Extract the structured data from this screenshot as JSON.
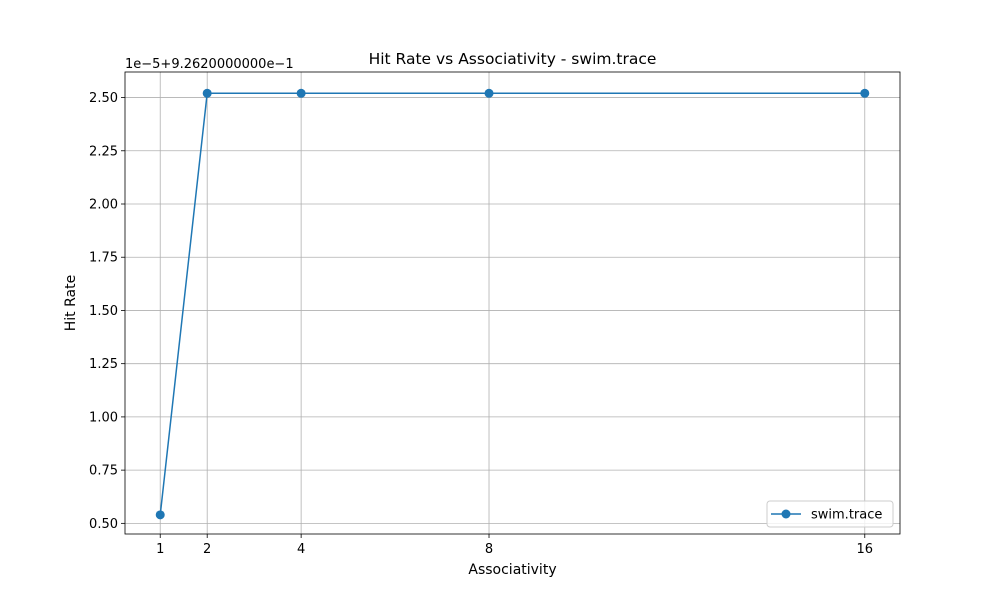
{
  "chart_data": {
    "type": "line",
    "title": "Hit Rate vs Associativity - swim.trace",
    "xlabel": "Associativity",
    "ylabel": "Hit Rate",
    "y_offset_label": "1e−5+9.2620000000e−1",
    "x_ticks": [
      1,
      2,
      4,
      8,
      16
    ],
    "x_tick_labels": [
      "1",
      "2",
      "4",
      "8",
      "16"
    ],
    "y_ticks": [
      0.5,
      0.75,
      1.0,
      1.25,
      1.5,
      1.75,
      2.0,
      2.25,
      2.5
    ],
    "y_tick_labels": [
      "0.50",
      "0.75",
      "1.00",
      "1.25",
      "1.50",
      "1.75",
      "2.00",
      "2.25",
      "2.50"
    ],
    "xlim": [
      0.25,
      16.75
    ],
    "ylim": [
      0.45,
      2.62
    ],
    "grid": true,
    "legend_position": "lower right",
    "series": [
      {
        "name": "swim.trace",
        "color": "#1f77b4",
        "marker": "circle",
        "x": [
          1,
          2,
          4,
          8,
          16
        ],
        "y": [
          0.54,
          2.52,
          2.52,
          2.52,
          2.52
        ]
      }
    ]
  }
}
